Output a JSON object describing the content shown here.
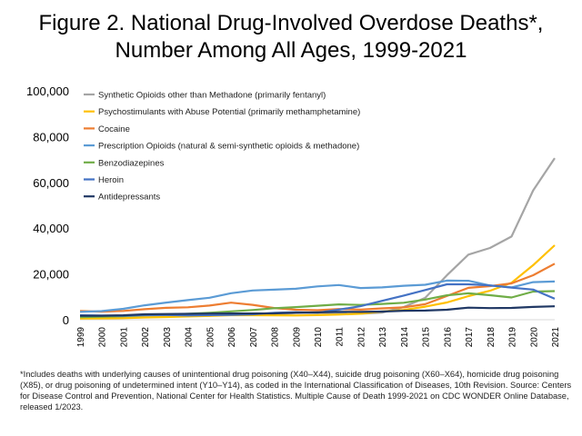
{
  "chart_data": {
    "type": "line",
    "title": [
      "Figure 2. National Drug-Involved Overdose Deaths*,",
      "Number Among All Ages, 1999-2021"
    ],
    "xlabel": "",
    "ylabel": "",
    "x": [
      1999,
      2000,
      2001,
      2002,
      2003,
      2004,
      2005,
      2006,
      2007,
      2008,
      2009,
      2010,
      2011,
      2012,
      2013,
      2014,
      2015,
      2016,
      2017,
      2018,
      2019,
      2020,
      2021
    ],
    "ylim": [
      0,
      100000
    ],
    "yticks": [
      0,
      20000,
      40000,
      60000,
      80000,
      100000
    ],
    "ytick_labels": [
      "0",
      "20,000",
      "40,000",
      "60,000",
      "80,000",
      "100,000"
    ],
    "grid": false,
    "legend_position": "top-left",
    "series": [
      {
        "name": "Synthetic Opioids other than Methadone (primarily fentanyl)",
        "color": "#a5a5a5",
        "values": [
          730,
          782,
          957,
          1295,
          1400,
          1664,
          1742,
          2707,
          2213,
          2306,
          2946,
          3007,
          2666,
          2628,
          3105,
          5544,
          9580,
          19413,
          28466,
          31335,
          36359,
          56516,
          70601
        ]
      },
      {
        "name": "Psychostimulants with Abuse Potential (primarily methamphetamine)",
        "color": "#ffc000",
        "values": [
          547,
          578,
          674,
          998,
          1193,
          1434,
          1682,
          1983,
          1976,
          1939,
          1849,
          2010,
          2266,
          2628,
          3627,
          4298,
          5716,
          7542,
          10333,
          12676,
          16167,
          23837,
          32537
        ]
      },
      {
        "name": "Cocaine",
        "color": "#ed7d31",
        "values": [
          3822,
          3544,
          3833,
          4599,
          5199,
          5443,
          6208,
          7448,
          6512,
          5129,
          4350,
          4183,
          4681,
          4404,
          4944,
          5415,
          6784,
          10375,
          13942,
          14666,
          15883,
          19447,
          24486
        ]
      },
      {
        "name": "Prescription Opioids (natural & semi-synthetic opioids & methadone)",
        "color": "#5b9bd5",
        "values": [
          3442,
          3785,
          4770,
          6315,
          7486,
          8577,
          9612,
          11589,
          12796,
          13149,
          13523,
          14583,
          15140,
          13845,
          14145,
          14838,
          15281,
          17087,
          17029,
          14975,
          14139,
          16416,
          16706
        ]
      },
      {
        "name": "Benzodiazepines",
        "color": "#70ad47",
        "values": [
          1135,
          1298,
          1594,
          2032,
          2248,
          2585,
          3049,
          3663,
          4250,
          5053,
          5509,
          6104,
          6718,
          6453,
          6888,
          7426,
          8791,
          10684,
          11537,
          10724,
          9711,
          12290,
          12499
        ]
      },
      {
        "name": "Heroin",
        "color": "#4472c4",
        "values": [
          1960,
          1842,
          1779,
          2089,
          2080,
          1878,
          2009,
          2088,
          2399,
          3041,
          3278,
          3036,
          4397,
          5925,
          8257,
          10574,
          12989,
          15469,
          15482,
          14996,
          14019,
          13165,
          9173
        ]
      },
      {
        "name": "Antidepressants",
        "color": "#203864",
        "values": [
          1749,
          1749,
          1955,
          2375,
          2517,
          2591,
          2708,
          2748,
          2746,
          2764,
          3099,
          3215,
          3440,
          3415,
          3564,
          3934,
          4016,
          4349,
          5269,
          5064,
          5153,
          5597,
          5863
        ]
      }
    ]
  },
  "footnote": "*Includes deaths with underlying causes of unintentional drug poisoning (X40–X44), suicide drug poisoning (X60–X64), homicide drug poisoning (X85), or drug poisoning of undetermined intent (Y10–Y14), as coded in the International Classification of Diseases, 10th Revision. Source: Centers for Disease Control and Prevention, National Center for Health Statistics. Multiple Cause of Death 1999-2021 on CDC WONDER Online Database, released 1/2023."
}
